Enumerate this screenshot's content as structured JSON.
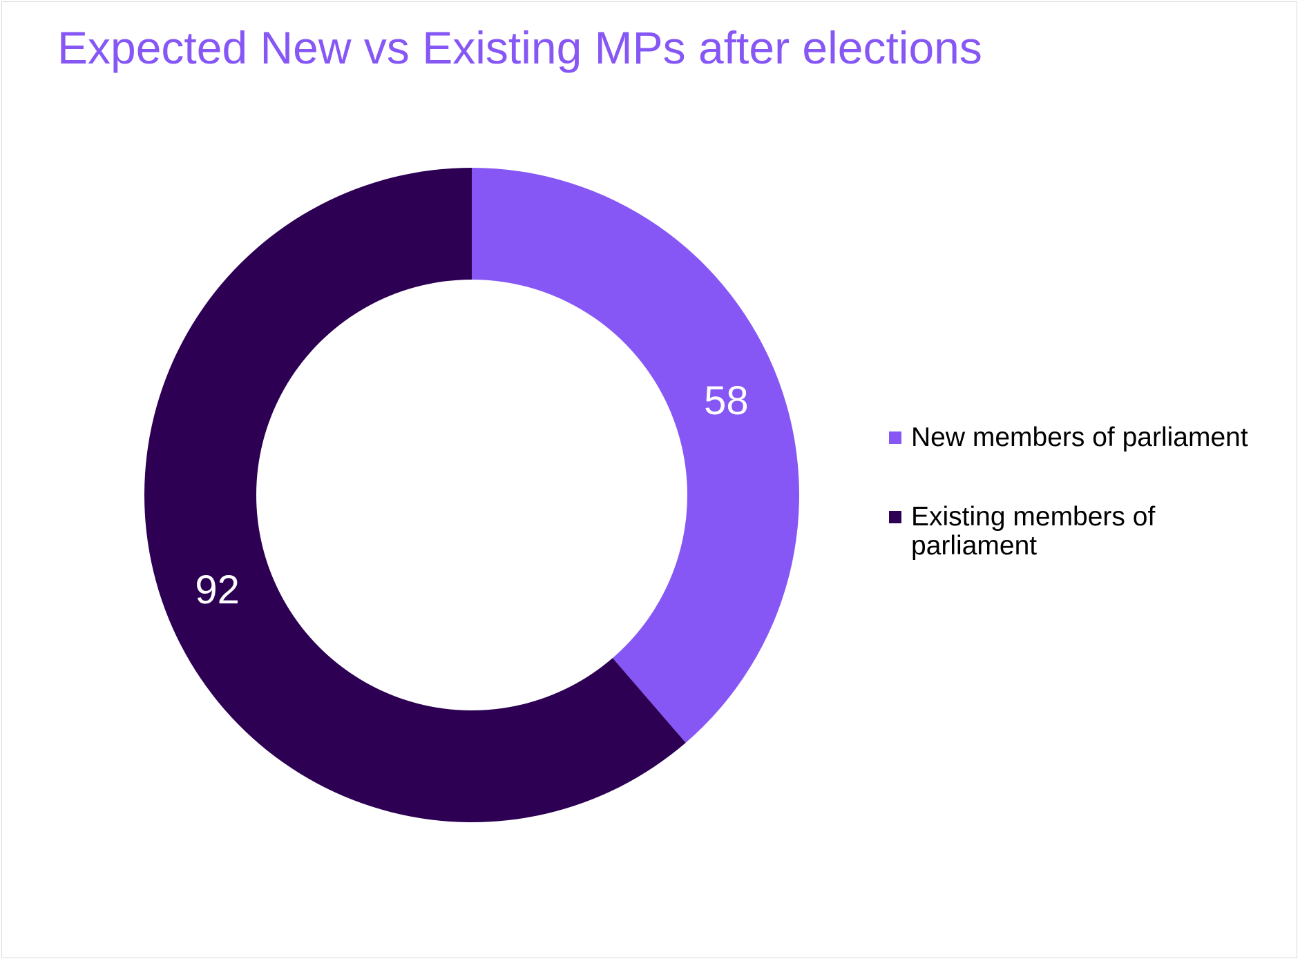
{
  "chart_data": {
    "type": "pie",
    "title": "Expected New vs Existing MPs after elections",
    "donut": true,
    "categories": [
      "New members of parliament",
      "Existing members of parliament"
    ],
    "values": [
      58,
      92
    ],
    "data_labels": [
      "58",
      "92"
    ],
    "colors": [
      "#8657f5",
      "#2d0054"
    ],
    "start_angle_deg": 0,
    "direction": "clockwise",
    "legend_position": "right"
  },
  "legend": {
    "items": [
      {
        "label": "New members of parliament",
        "color": "#8657f5"
      },
      {
        "label": "Existing members of parliament",
        "color": "#2d0054"
      }
    ]
  }
}
